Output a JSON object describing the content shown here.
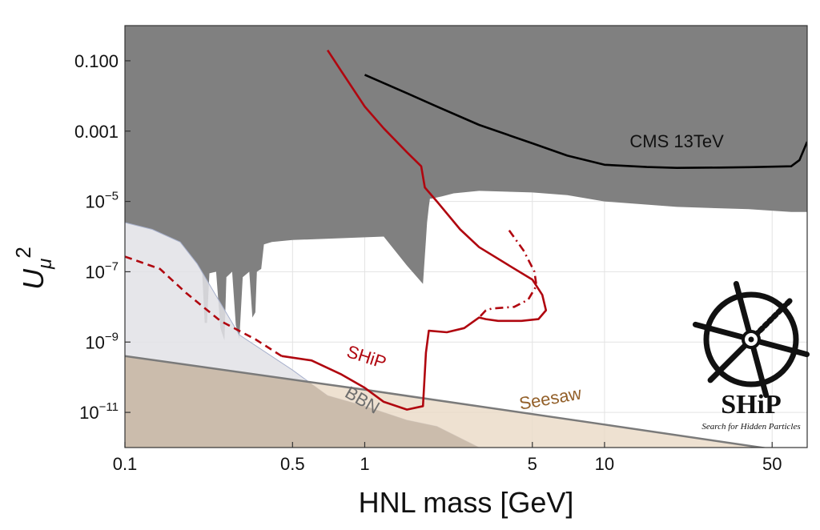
{
  "chart_data": {
    "type": "area",
    "title": "",
    "xlabel": "HNL mass [GeV]",
    "ylabel": "U",
    "ylabel_sub": "μ",
    "ylabel_sup": "2",
    "xscale": "log",
    "yscale": "log",
    "xlim": [
      0.1,
      70
    ],
    "ylim": [
      1e-12,
      1.0
    ],
    "grid": true,
    "x_ticks": [
      {
        "value": 0.1,
        "label": "0.1"
      },
      {
        "value": 0.5,
        "label": "0.5"
      },
      {
        "value": 1,
        "label": "1"
      },
      {
        "value": 5,
        "label": "5"
      },
      {
        "value": 10,
        "label": "10"
      },
      {
        "value": 50,
        "label": "50"
      }
    ],
    "y_ticks": [
      {
        "value": 0.1,
        "label": "0.100",
        "sup": ""
      },
      {
        "value": 0.001,
        "label": "0.001",
        "sup": ""
      },
      {
        "value": 1e-05,
        "label": "10",
        "sup": "−5"
      },
      {
        "value": 1e-07,
        "label": "10",
        "sup": "−7"
      },
      {
        "value": 1e-09,
        "label": "10",
        "sup": "−9"
      },
      {
        "value": 1e-11,
        "label": "10",
        "sup": "−11"
      }
    ],
    "x_grid": [
      0.5,
      1,
      5,
      10,
      50
    ],
    "y_grid": [
      0.1,
      0.001,
      1e-05,
      1e-07,
      1e-09,
      1e-11
    ],
    "colors": {
      "excluded": "#808080",
      "bbn": "#e2e2e6",
      "bbn_edge": "#a7b0cc",
      "seesaw": "#ead9c6",
      "overlap": "#cbbcac",
      "seesaw_line": "#7a7a7a",
      "ship": "#b0060f",
      "cms": "#000000",
      "bbn_label": "#6e6e6e",
      "seesaw_label": "#93602a",
      "grid": "#e3e3e3"
    },
    "series": [
      {
        "name": "Excluded region",
        "kind": "region-top",
        "points": [
          [
            0.1,
            2.5e-06
          ],
          [
            0.13,
            1.6e-06
          ],
          [
            0.17,
            7e-07
          ],
          [
            0.2,
            1.7e-07
          ],
          [
            0.21,
            9e-08
          ],
          [
            0.215,
            3.5e-09
          ],
          [
            0.22,
            3.5e-09
          ],
          [
            0.225,
            9e-08
          ],
          [
            0.24,
            1e-07
          ],
          [
            0.25,
            2.5e-09
          ],
          [
            0.26,
            1.1e-09
          ],
          [
            0.265,
            7e-08
          ],
          [
            0.28,
            1e-07
          ],
          [
            0.29,
            3e-09
          ],
          [
            0.3,
            1.2e-09
          ],
          [
            0.31,
            7e-08
          ],
          [
            0.33,
            1e-07
          ],
          [
            0.34,
            5e-09
          ],
          [
            0.35,
            7e-09
          ],
          [
            0.355,
            1e-07
          ],
          [
            0.37,
            1.2e-07
          ],
          [
            0.38,
            6e-07
          ],
          [
            0.41,
            7e-07
          ],
          [
            0.5,
            8e-07
          ],
          [
            1.2,
            1e-06
          ],
          [
            1.5,
            1.5e-07
          ],
          [
            1.75,
            4.5e-08
          ],
          [
            1.8,
            8e-07
          ],
          [
            1.82,
            2.5e-06
          ],
          [
            1.85,
            7e-06
          ],
          [
            1.87,
            1.2e-05
          ],
          [
            1.9,
            1.2e-05
          ],
          [
            2.1,
            1.4e-05
          ],
          [
            2.35,
            1.7e-05
          ],
          [
            3,
            2e-05
          ],
          [
            5,
            1.8e-05
          ],
          [
            7,
            1.5e-05
          ],
          [
            10,
            1e-05
          ],
          [
            20,
            7e-06
          ],
          [
            40,
            6e-06
          ],
          [
            60,
            5e-06
          ],
          [
            70,
            5e-06
          ]
        ]
      },
      {
        "name": "BBN",
        "label": "BBN",
        "kind": "region-below",
        "points": [
          [
            0.1,
            2.5e-06
          ],
          [
            0.13,
            1.6e-06
          ],
          [
            0.17,
            7e-07
          ],
          [
            0.2,
            1.7e-07
          ],
          [
            0.3,
            1.6e-09
          ],
          [
            0.5,
            1.6e-10
          ],
          [
            0.7,
            3e-11
          ],
          [
            1,
            1.5e-11
          ],
          [
            1.5,
            6e-12
          ],
          [
            2,
            4e-12
          ],
          [
            3,
            1e-12
          ]
        ]
      },
      {
        "name": "Seesaw",
        "label": "Seesaw",
        "kind": "region-below",
        "points": [
          [
            0.1,
            4e-10
          ],
          [
            1,
            4.4e-11
          ],
          [
            10,
            4.5e-12
          ],
          [
            50,
            9e-13
          ],
          [
            70,
            6.5e-13
          ]
        ]
      },
      {
        "name": "SHiP sensitivity",
        "label": "SHiP",
        "kind": "line",
        "points": [
          [
            0.7,
            0.2
          ],
          [
            0.8,
            0.05
          ],
          [
            1,
            0.005
          ],
          [
            1.2,
            0.0012
          ],
          [
            1.5,
            0.00025
          ],
          [
            1.72,
            0.0001
          ],
          [
            1.78,
            2.5e-05
          ],
          [
            2,
            1e-05
          ],
          [
            2.5,
            1.6e-06
          ],
          [
            3,
            5e-07
          ],
          [
            4,
            1.5e-07
          ],
          [
            5,
            6e-08
          ],
          [
            5.5,
            2.2e-08
          ],
          [
            5.7,
            8e-09
          ],
          [
            5.3,
            4.5e-09
          ],
          [
            4.5,
            4e-09
          ],
          [
            3.6,
            4e-09
          ],
          [
            3.2,
            4.5e-09
          ],
          [
            3,
            5e-09
          ],
          [
            2.6,
            2.5e-09
          ],
          [
            2.2,
            1.9e-09
          ],
          [
            1.85,
            2.1e-09
          ],
          [
            1.8,
            5e-10
          ],
          [
            1.75,
            1.5e-11
          ],
          [
            1.5,
            1.2e-11
          ],
          [
            1.2,
            2e-11
          ],
          [
            1,
            5e-11
          ],
          [
            0.8,
            1.2e-10
          ],
          [
            0.6,
            3e-10
          ],
          [
            0.45,
            4e-10
          ]
        ]
      },
      {
        "name": "SHiP dashed",
        "kind": "line-dashed",
        "points": [
          [
            0.45,
            4e-10
          ],
          [
            0.35,
            1.2e-09
          ],
          [
            0.25,
            4e-09
          ],
          [
            0.18,
            2.5e-08
          ],
          [
            0.14,
            1.2e-07
          ],
          [
            0.1,
            2.7e-07
          ]
        ]
      },
      {
        "name": "SHiP dash-dot",
        "kind": "line-dashdot",
        "points": [
          [
            4,
            1.5e-06
          ],
          [
            4.6,
            4e-07
          ],
          [
            5.1,
            1e-07
          ],
          [
            5.2,
            4e-08
          ],
          [
            4.8,
            1.6e-08
          ],
          [
            4.2,
            1e-08
          ],
          [
            3.8,
            9.5e-09
          ],
          [
            3.4,
            9e-09
          ],
          [
            3.2,
            8e-09
          ],
          [
            3,
            5e-09
          ]
        ]
      },
      {
        "name": "CMS 13TeV",
        "label": "CMS 13TeV",
        "kind": "line",
        "points": [
          [
            1,
            0.04
          ],
          [
            1.5,
            0.012
          ],
          [
            2,
            0.005
          ],
          [
            3,
            0.0015
          ],
          [
            5,
            0.00045
          ],
          [
            7,
            0.0002
          ],
          [
            10,
            0.00011
          ],
          [
            15,
            9.5e-05
          ],
          [
            20,
            9e-05
          ],
          [
            30,
            9.2e-05
          ],
          [
            40,
            9.4e-05
          ],
          [
            60,
            0.0001
          ],
          [
            65,
            0.00015
          ],
          [
            70,
            0.0005
          ]
        ]
      }
    ],
    "annotations": [
      {
        "text": "CMS 13TeV",
        "x": 20,
        "y": 0.00035,
        "color": "#111111",
        "angle": 0
      },
      {
        "text": "SHiP",
        "x": 1.0,
        "y": 2.6e-10,
        "color": "#b0060f",
        "angle": 18
      },
      {
        "text": "BBN",
        "x": 0.95,
        "y": 1.6e-11,
        "color": "#6e6e6e",
        "angle": 30
      },
      {
        "text": "Seesaw",
        "x": 6.0,
        "y": 1.7e-11,
        "color": "#93602a",
        "angle": -10
      }
    ]
  },
  "logo": {
    "name": "SHiP",
    "subtitle": "Search for Hidden Particles"
  }
}
